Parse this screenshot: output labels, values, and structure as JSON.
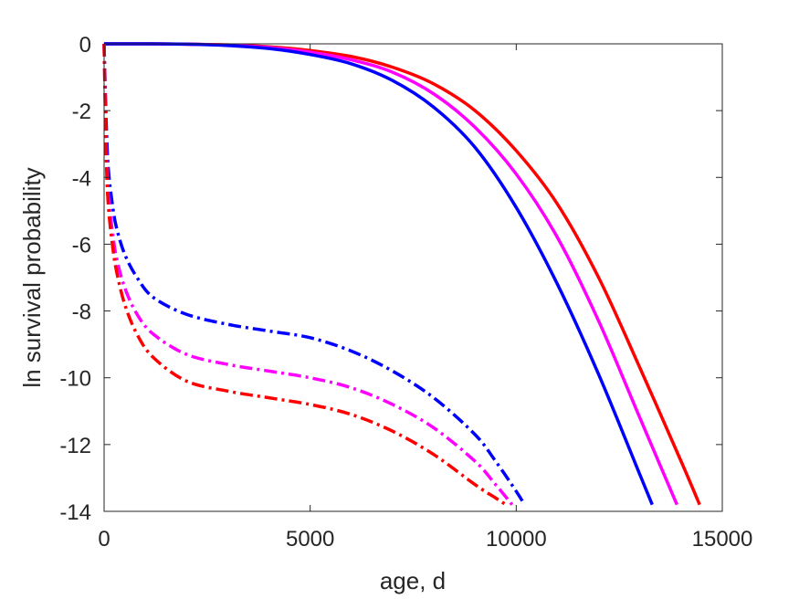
{
  "chart_data": {
    "type": "line",
    "title": "",
    "xlabel": "age, d",
    "ylabel": "ln survival probability",
    "xlim": [
      0,
      15000
    ],
    "ylim": [
      -14,
      0
    ],
    "xticks": [
      0,
      5000,
      10000,
      15000
    ],
    "xtick_labels": [
      "0",
      "5000",
      "10000",
      "15000"
    ],
    "yticks": [
      0,
      -2,
      -4,
      -6,
      -8,
      -10,
      -12,
      -14
    ],
    "ytick_labels": [
      "0",
      "-2",
      "-4",
      "-6",
      "-8",
      "-10",
      "-12",
      "-14"
    ],
    "grid": false,
    "legend": false,
    "series": [
      {
        "color": "#ff0000",
        "style": "solid",
        "x": [
          0,
          1000,
          2000,
          3000,
          4000,
          5000,
          6000,
          7000,
          8000,
          9000,
          10000,
          11000,
          12000,
          13000,
          14000,
          14450
        ],
        "y": [
          0,
          0,
          -0.01,
          -0.03,
          -0.09,
          -0.2,
          -0.38,
          -0.7,
          -1.2,
          -2.0,
          -3.2,
          -4.8,
          -7.0,
          -9.7,
          -12.5,
          -13.8
        ]
      },
      {
        "color": "#ff00ff",
        "style": "solid",
        "x": [
          0,
          1000,
          2000,
          3000,
          4000,
          5000,
          6000,
          7000,
          8000,
          9000,
          10000,
          11000,
          12000,
          13000,
          13900
        ],
        "y": [
          0,
          0,
          -0.01,
          -0.04,
          -0.11,
          -0.25,
          -0.48,
          -0.85,
          -1.5,
          -2.5,
          -3.9,
          -5.8,
          -8.3,
          -11.2,
          -13.8
        ]
      },
      {
        "color": "#0000ff",
        "style": "solid",
        "x": [
          0,
          1000,
          2000,
          3000,
          4000,
          5000,
          6000,
          7000,
          8000,
          9000,
          10000,
          11000,
          12000,
          13000,
          13300
        ],
        "y": [
          0,
          0,
          -0.01,
          -0.05,
          -0.14,
          -0.32,
          -0.6,
          -1.1,
          -1.9,
          -3.1,
          -4.9,
          -7.2,
          -9.9,
          -12.9,
          -13.8
        ]
      },
      {
        "color": "#0000ff",
        "style": "dashdot",
        "x": [
          0,
          50,
          100,
          200,
          300,
          500,
          800,
          1200,
          2000,
          3000,
          4000,
          5000,
          6000,
          7000,
          8000,
          9000,
          9500,
          10000,
          10200
        ],
        "y": [
          0,
          -2.3,
          -3.7,
          -4.8,
          -5.5,
          -6.3,
          -7.0,
          -7.6,
          -8.1,
          -8.4,
          -8.6,
          -8.8,
          -9.2,
          -9.8,
          -10.6,
          -11.7,
          -12.5,
          -13.4,
          -13.8
        ]
      },
      {
        "color": "#ff00ff",
        "style": "dashdot",
        "x": [
          0,
          50,
          100,
          200,
          300,
          500,
          800,
          1200,
          2000,
          3000,
          4000,
          5000,
          6000,
          7000,
          8000,
          9000,
          9500,
          9900
        ],
        "y": [
          0,
          -3.0,
          -4.5,
          -5.6,
          -6.4,
          -7.3,
          -8.1,
          -8.7,
          -9.3,
          -9.6,
          -9.8,
          -10.0,
          -10.3,
          -10.8,
          -11.5,
          -12.5,
          -13.2,
          -13.8
        ]
      },
      {
        "color": "#ff0000",
        "style": "dashdot",
        "x": [
          0,
          50,
          100,
          200,
          300,
          500,
          800,
          1200,
          2000,
          3000,
          4000,
          5000,
          6000,
          7000,
          8000,
          9000,
          9500,
          9750
        ],
        "y": [
          0,
          -3.3,
          -4.8,
          -6.0,
          -6.8,
          -7.8,
          -8.7,
          -9.4,
          -10.1,
          -10.4,
          -10.6,
          -10.8,
          -11.1,
          -11.6,
          -12.3,
          -13.2,
          -13.6,
          -13.8
        ]
      }
    ]
  }
}
